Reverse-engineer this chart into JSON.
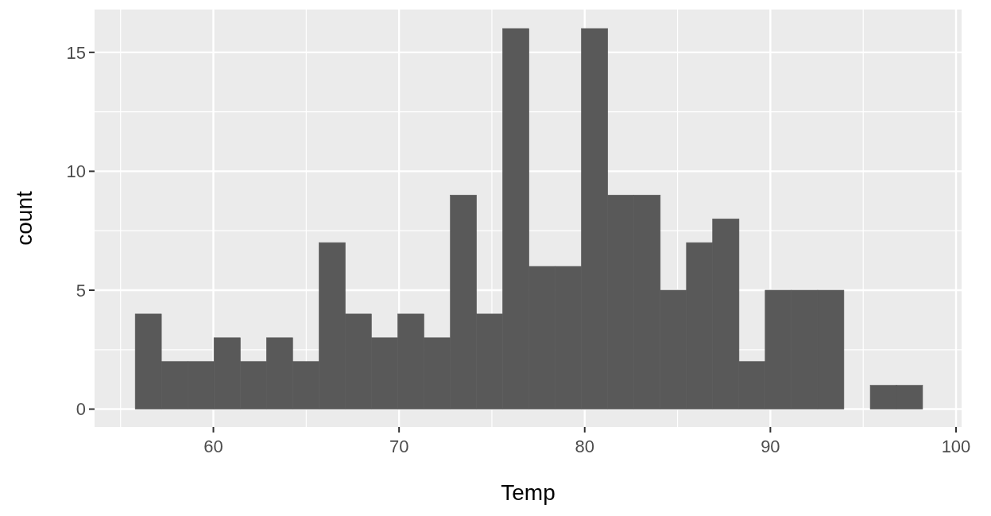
{
  "chart_data": {
    "type": "histogram",
    "xlabel": "Temp",
    "ylabel": "count",
    "color": "#595959",
    "bins": [
      55.79,
      57.2,
      58.62,
      60.03,
      61.45,
      62.86,
      64.27,
      65.69,
      67.1,
      68.51,
      69.93,
      71.34,
      72.76,
      74.17,
      75.58,
      77,
      78.41,
      79.82,
      81.24,
      82.65,
      84.07,
      85.48,
      86.89,
      88.31,
      89.72,
      91.13,
      92.55,
      93.96,
      95.38,
      96.79,
      98.2
    ],
    "values": [
      4,
      2,
      2,
      3,
      2,
      3,
      2,
      7,
      4,
      3,
      4,
      3,
      9,
      4,
      16,
      6,
      6,
      16,
      9,
      9,
      5,
      7,
      8,
      2,
      5,
      5,
      5,
      0,
      1,
      1
    ],
    "xlim": [
      53.6,
      100.3
    ],
    "xticks": [
      60,
      70,
      80,
      90,
      100
    ],
    "ylim": [
      -0.75,
      16.8
    ],
    "yticks": [
      0,
      5,
      10,
      15
    ],
    "grid": true
  }
}
